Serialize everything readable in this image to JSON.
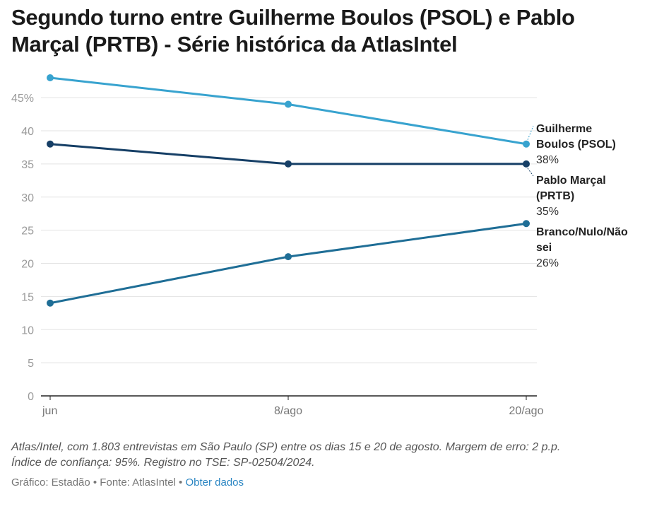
{
  "title": "Segundo turno entre Guilherme Boulos (PSOL) e Pablo Marçal (PRTB) - Série histórica da AtlasIntel",
  "notes": {
    "line1": "Atlas/Intel, com 1.803 entrevistas em São Paulo (SP) entre os dias 15 e 20 de agosto. Margem de erro: 2 p.p.",
    "line2": "Índice de confiança: 95%. Registro no TSE: SP-02504/2024."
  },
  "credits": {
    "text": "Gráfico: Estadão • Fonte: AtlasIntel •",
    "link": "Obter dados"
  },
  "chart_data": {
    "type": "line",
    "title": "Segundo turno entre Guilherme Boulos (PSOL) e Pablo Marçal (PRTB) - Série histórica da AtlasIntel",
    "x": [
      "jun",
      "8/ago",
      "20/ago"
    ],
    "yticks": [
      "0",
      "5",
      "10",
      "15",
      "20",
      "25",
      "30",
      "35",
      "40",
      "45%"
    ],
    "ylim": [
      0,
      48
    ],
    "grid": true,
    "series": [
      {
        "name_lines": [
          "Guilherme",
          "Boulos (PSOL)"
        ],
        "value_label": "38%",
        "color": "#38a3cf",
        "values": [
          48,
          44,
          38
        ]
      },
      {
        "name_lines": [
          "Pablo Marçal",
          "(PRTB)"
        ],
        "value_label": "35%",
        "color": "#163f66",
        "values": [
          38,
          35,
          35
        ]
      },
      {
        "name_lines": [
          "Branco/Nulo/Não",
          "sei"
        ],
        "value_label": "26%",
        "color": "#1f6e96",
        "values": [
          14,
          21,
          26
        ]
      }
    ]
  }
}
